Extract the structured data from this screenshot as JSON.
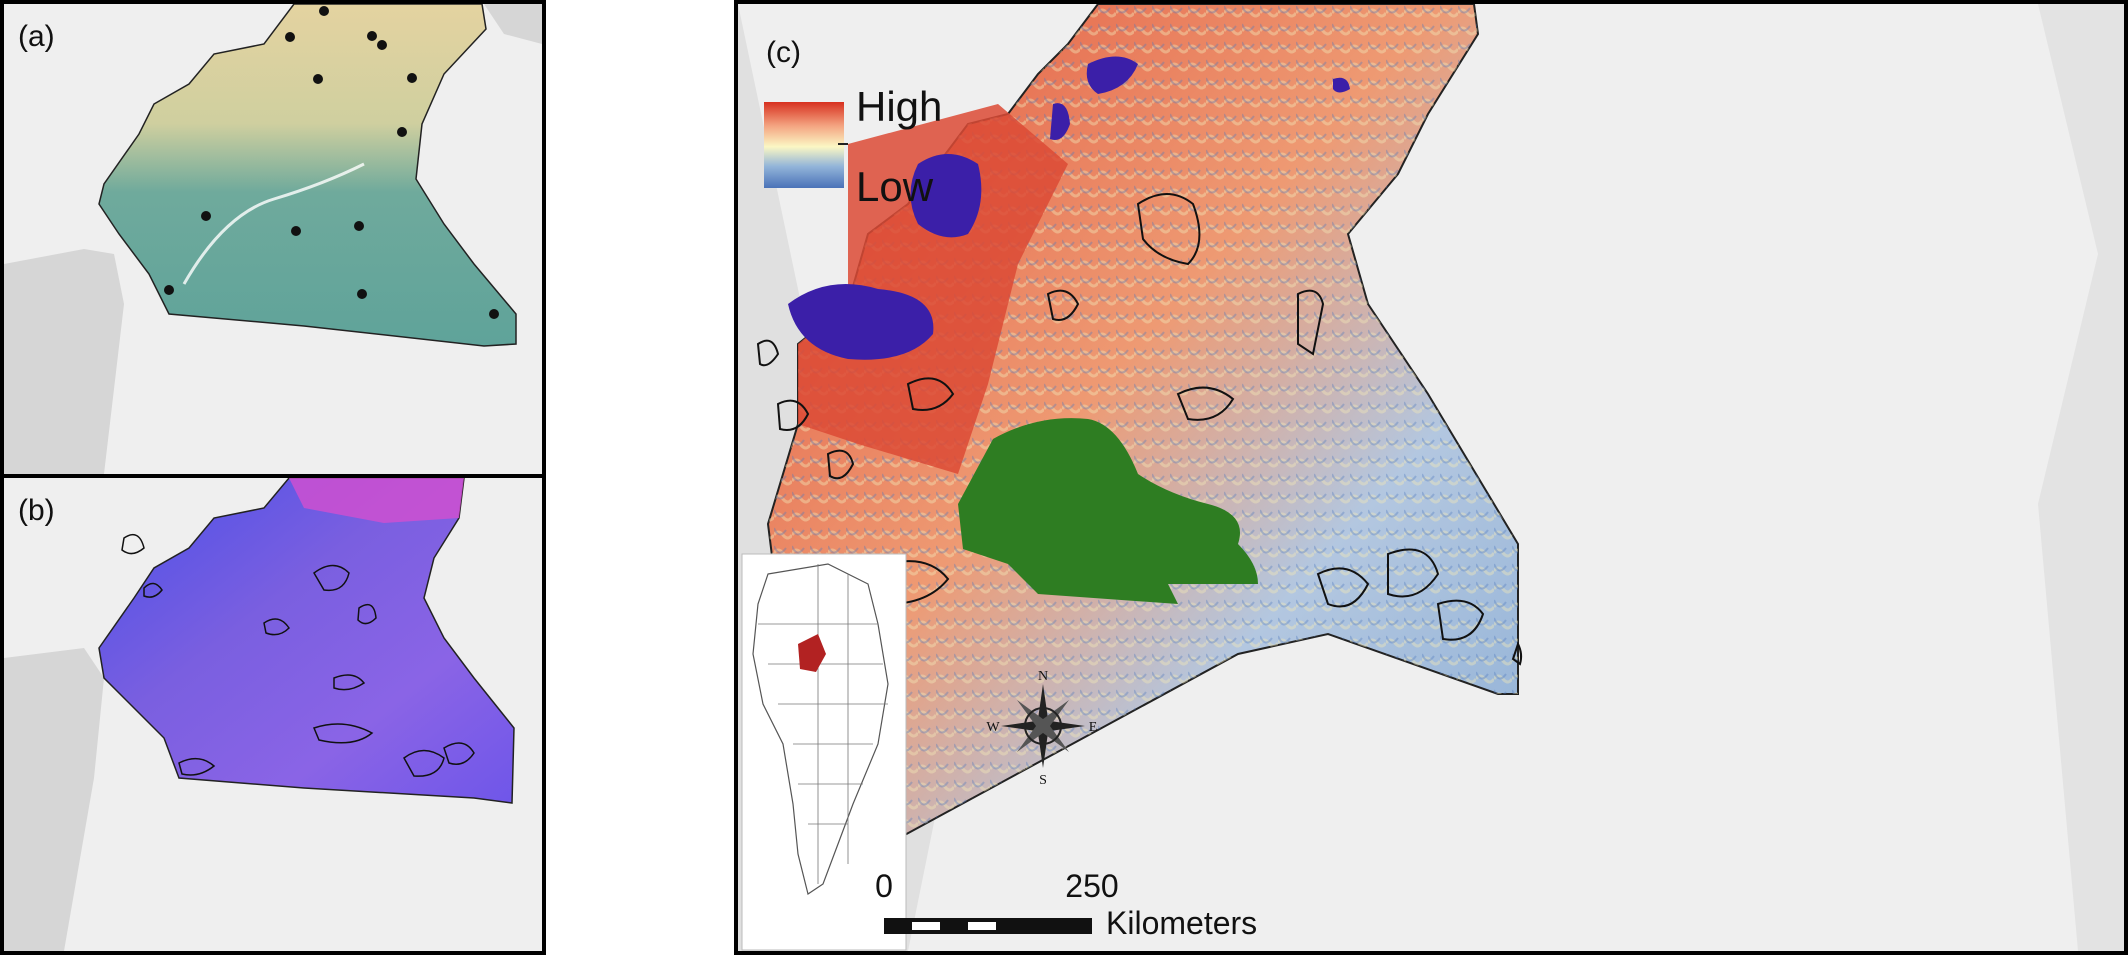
{
  "figure": {
    "panel_a": {
      "label": "(a)"
    },
    "panel_b": {
      "label": "(b)"
    },
    "panel_c": {
      "label": "(c)"
    }
  },
  "legend": {
    "high_label": "High",
    "low_label": "Low",
    "gradient_colors": [
      "#d7301f",
      "#f4a582",
      "#fbf7c4",
      "#92b4d9",
      "#4a72b8"
    ]
  },
  "scale_bar": {
    "tick_start": "0",
    "tick_mid": "250",
    "unit": "Kilometers"
  },
  "compass": {
    "n": "N",
    "s": "S",
    "e": "E",
    "w": "W"
  },
  "colors": {
    "ocean_land_grey": "#d9d9d9",
    "background": "#efefef",
    "protected_area_purple": "#3b1fa8",
    "protected_area_green": "#2e7d22",
    "highlight_country": "#b22222"
  }
}
